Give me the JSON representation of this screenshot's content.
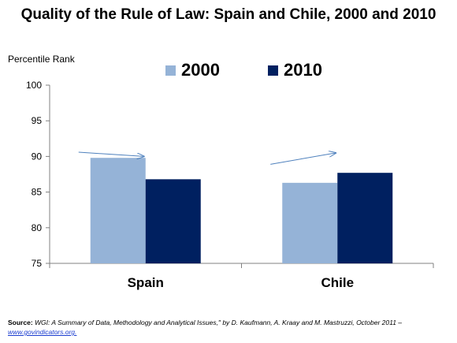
{
  "chart_data": {
    "type": "bar",
    "title": "Quality of the Rule of Law: Spain and Chile, 2000 and 2010",
    "ylabel": "Percentile Rank",
    "xlabel": "",
    "categories": [
      "Spain",
      "Chile"
    ],
    "series": [
      {
        "name": "2000",
        "values": [
          89.8,
          86.3
        ],
        "color": "#95b3d7"
      },
      {
        "name": "2010",
        "values": [
          86.8,
          87.7
        ],
        "color": "#002060"
      }
    ],
    "ylim": [
      75,
      100
    ],
    "yticks": [
      "75",
      "80",
      "85",
      "90",
      "95",
      "100"
    ],
    "grid": false,
    "legend": "top",
    "annotations": [
      {
        "type": "arrow",
        "category": "Spain",
        "from": 90.6,
        "to": 90.0
      },
      {
        "type": "arrow",
        "category": "Chile",
        "from": 88.9,
        "to": 90.5
      }
    ],
    "arrow_color": "#4f81bd"
  },
  "source": {
    "label": "Source:",
    "text": "WGI: A Summary of Data, Methodology and Analytical Issues,\" by D. Kaufmann, A. Kraay and M. Mastruzzi, October 2011 –",
    "link": "www.govindicators.org."
  }
}
